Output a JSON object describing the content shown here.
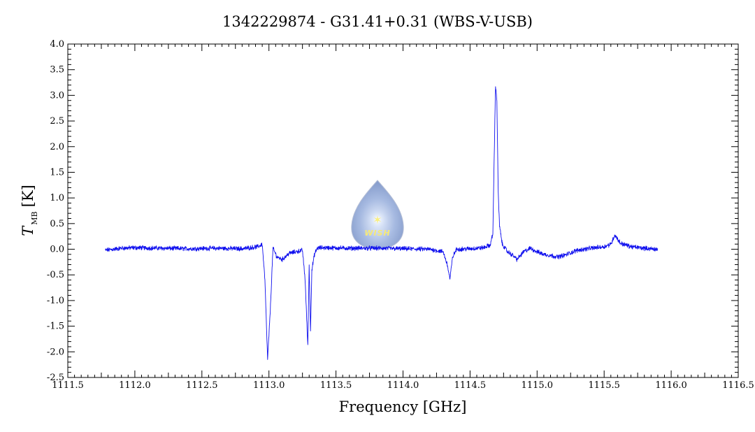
{
  "chart_data": {
    "type": "line",
    "title": "1342229874 - G31.41+0.31 (WBS-V-USB)",
    "xlabel": "Frequency [GHz]",
    "ylabel_main": "T",
    "ylabel_sub": "MB",
    "ylabel_unit": "[K]",
    "xlim": [
      1111.5,
      1116.5
    ],
    "ylim": [
      -2.5,
      4.0
    ],
    "x_major_ticks": [
      1111.5,
      1112.0,
      1112.5,
      1113.0,
      1113.5,
      1114.0,
      1114.5,
      1115.0,
      1115.5,
      1116.0,
      1116.5
    ],
    "x_tick_labels": [
      "1111.5",
      "1112.0",
      "1112.5",
      "1113.0",
      "1113.5",
      "1114.0",
      "1114.5",
      "1115.0",
      "1115.5",
      "1116.0",
      "1116.5"
    ],
    "y_major_ticks": [
      -2.5,
      -2.0,
      -1.5,
      -1.0,
      -0.5,
      0.0,
      0.5,
      1.0,
      1.5,
      2.0,
      2.5,
      3.0,
      3.5,
      4.0
    ],
    "y_tick_labels": [
      "-2.5",
      "-2.0",
      "-1.5",
      "-1.0",
      "-0.5",
      "0.0",
      "0.5",
      "1.0",
      "1.5",
      "2.0",
      "2.5",
      "3.0",
      "3.5",
      "4.0"
    ],
    "series_color": "#1010ee",
    "grid": false,
    "noise_amplitude": 0.035,
    "series": [
      {
        "x": [
          1111.78,
          1111.9,
          1112.0,
          1112.2,
          1112.4,
          1112.6,
          1112.8,
          1112.92,
          1112.95,
          1112.97,
          1112.99,
          1113.01,
          1113.03,
          1113.06,
          1113.1,
          1113.15,
          1113.2,
          1113.25,
          1113.27,
          1113.29,
          1113.3,
          1113.31,
          1113.32,
          1113.34,
          1113.36,
          1113.4,
          1113.6,
          1113.8,
          1114.0,
          1114.2,
          1114.3,
          1114.33,
          1114.35,
          1114.37,
          1114.4,
          1114.5,
          1114.6,
          1114.65,
          1114.67,
          1114.68,
          1114.69,
          1114.7,
          1114.71,
          1114.72,
          1114.74,
          1114.78,
          1114.82,
          1114.85,
          1114.9,
          1114.95,
          1115.0,
          1115.05,
          1115.1,
          1115.15,
          1115.2,
          1115.3,
          1115.4,
          1115.5,
          1115.55,
          1115.58,
          1115.62,
          1115.7,
          1115.8,
          1115.9
        ],
        "y": [
          -0.02,
          0.02,
          0.03,
          0.02,
          0.01,
          0.02,
          0.01,
          0.05,
          0.1,
          -0.6,
          -2.15,
          -1.2,
          0.02,
          -0.15,
          -0.2,
          -0.08,
          -0.05,
          -0.02,
          -0.6,
          -1.9,
          -0.3,
          -1.6,
          -0.4,
          -0.1,
          0.02,
          0.03,
          0.02,
          0.02,
          0.01,
          0.0,
          -0.05,
          -0.3,
          -0.58,
          -0.15,
          0.0,
          0.01,
          0.03,
          0.08,
          0.3,
          1.8,
          3.2,
          2.9,
          1.1,
          0.45,
          0.1,
          -0.05,
          -0.12,
          -0.2,
          -0.05,
          0.02,
          -0.05,
          -0.1,
          -0.12,
          -0.15,
          -0.12,
          -0.02,
          0.02,
          0.05,
          0.1,
          0.28,
          0.12,
          0.05,
          0.02,
          0.0
        ]
      }
    ],
    "logo_text": "WISH"
  }
}
